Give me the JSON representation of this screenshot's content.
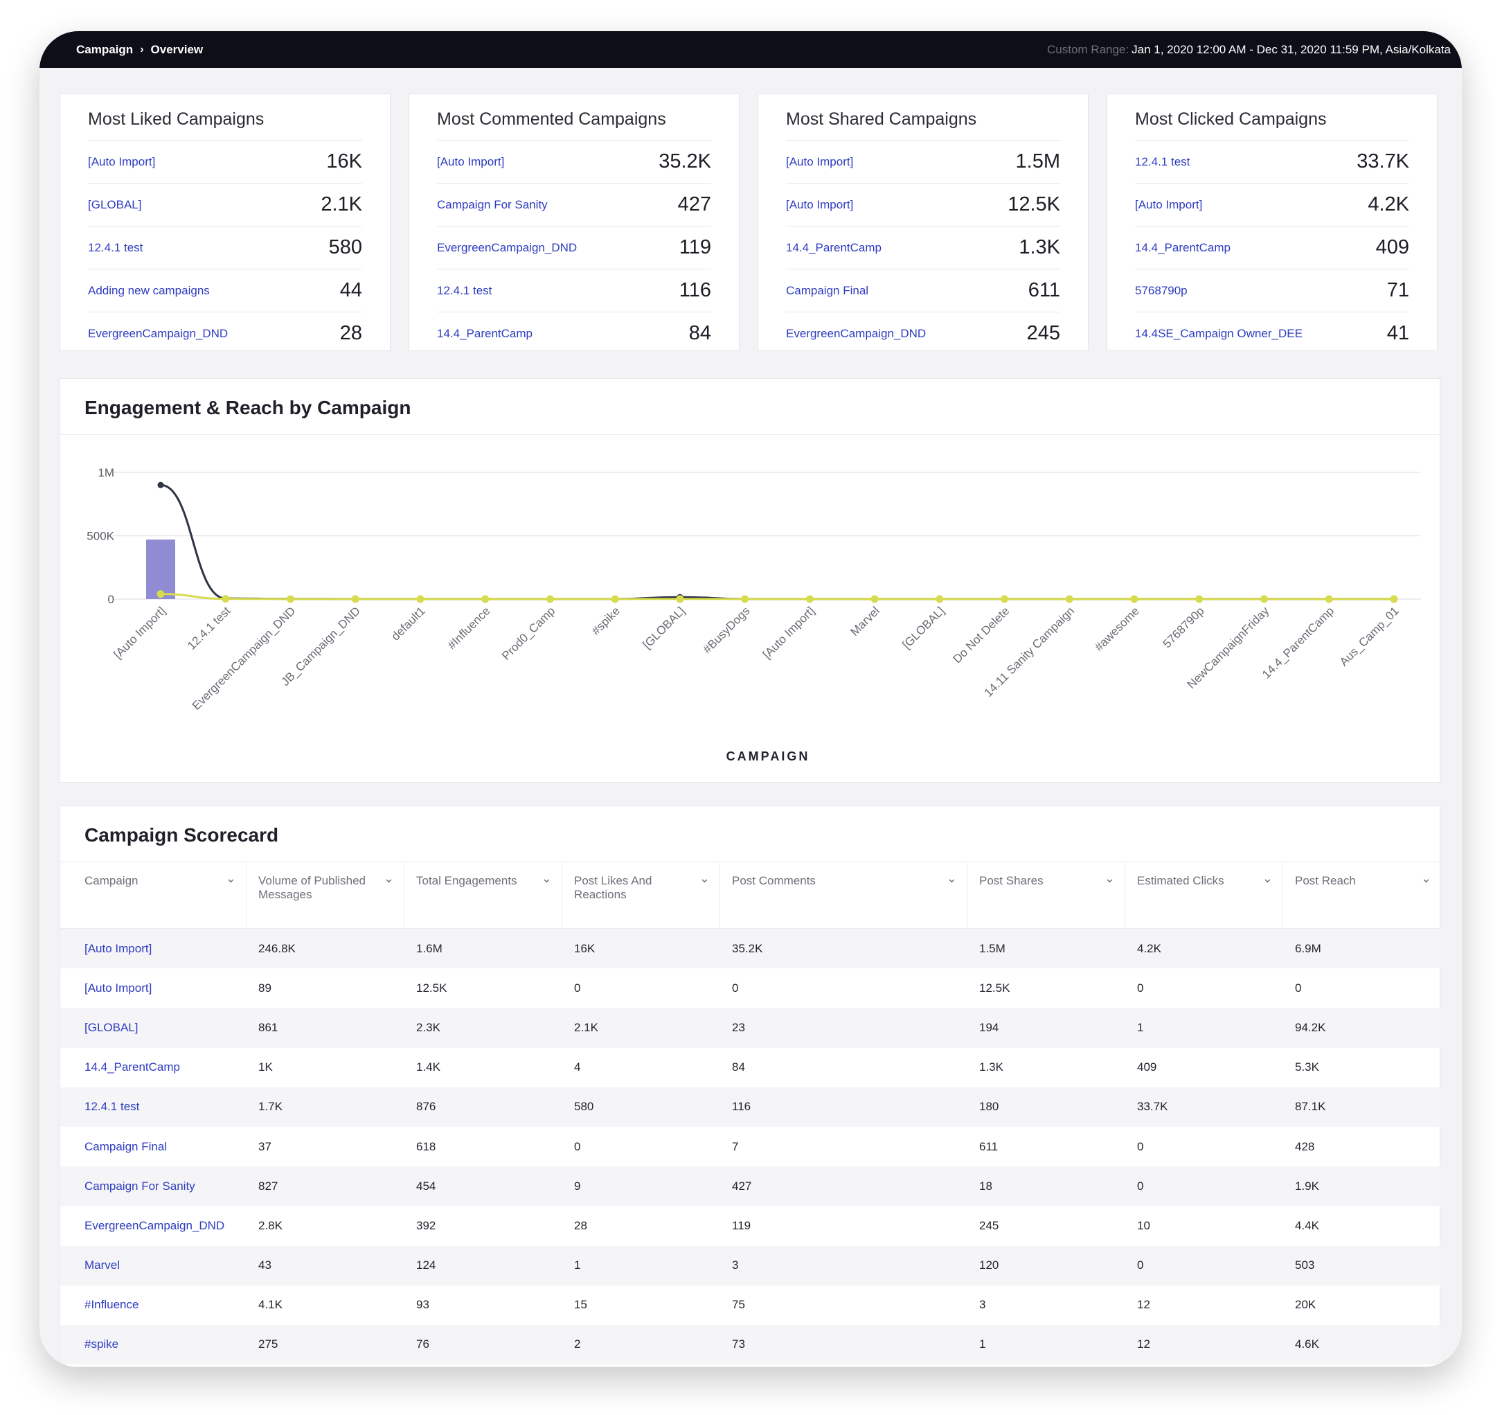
{
  "breadcrumb": {
    "root": "Campaign",
    "current": "Overview"
  },
  "date_range": {
    "label": "Custom Range:",
    "value": "Jan 1, 2020 12:00 AM - Dec 31, 2020 11:59 PM, Asia/Kolkata"
  },
  "cards": [
    {
      "title": "Most Liked Campaigns",
      "rows": [
        {
          "name": "[Auto Import]",
          "value": "16K"
        },
        {
          "name": "[GLOBAL]",
          "value": "2.1K"
        },
        {
          "name": "12.4.1 test",
          "value": "580"
        },
        {
          "name": "Adding new campaigns",
          "value": "44"
        },
        {
          "name": "EvergreenCampaign_DND",
          "value": "28"
        }
      ]
    },
    {
      "title": "Most Commented Campaigns",
      "rows": [
        {
          "name": "[Auto Import]",
          "value": "35.2K"
        },
        {
          "name": "Campaign For Sanity",
          "value": "427"
        },
        {
          "name": "EvergreenCampaign_DND",
          "value": "119"
        },
        {
          "name": "12.4.1 test",
          "value": "116"
        },
        {
          "name": "14.4_ParentCamp",
          "value": "84"
        }
      ]
    },
    {
      "title": "Most Shared Campaigns",
      "rows": [
        {
          "name": "[Auto Import]",
          "value": "1.5M"
        },
        {
          "name": "[Auto Import]",
          "value": "12.5K"
        },
        {
          "name": "14.4_ParentCamp",
          "value": "1.3K"
        },
        {
          "name": "Campaign Final",
          "value": "611"
        },
        {
          "name": "EvergreenCampaign_DND",
          "value": "245"
        }
      ]
    },
    {
      "title": "Most Clicked Campaigns",
      "rows": [
        {
          "name": "12.4.1 test",
          "value": "33.7K"
        },
        {
          "name": "[Auto Import]",
          "value": "4.2K"
        },
        {
          "name": "14.4_ParentCamp",
          "value": "409"
        },
        {
          "name": "5768790p",
          "value": "71"
        },
        {
          "name": "14.4SE_Campaign Owner_DEE",
          "value": "41"
        }
      ]
    }
  ],
  "engagement": {
    "title": "Engagement & Reach by Campaign"
  },
  "chart_data": {
    "type": "bar",
    "xlabel": "CAMPAIGN",
    "ylabel": "",
    "ylim": [
      0,
      1000000
    ],
    "yticks": [
      "0",
      "500K",
      "1M"
    ],
    "categories": [
      "[Auto Import]",
      "12.4.1 test",
      "EvergreenCampaign_DND",
      "JB_Campaign_DND",
      "default1",
      "#Influence",
      "Prod0_Camp",
      "#spike",
      "[GLOBAL]",
      "#BusyDogs",
      "[Auto Import]",
      "Marvel",
      "[GLOBAL]",
      "Do Not Delete",
      "14.11 Sanity Campaign",
      "#awesome",
      "5768790p",
      "NewCampaignFriday",
      "14.4_ParentCamp",
      "Aus_Camp_01"
    ],
    "series": [
      {
        "type": "bar",
        "color": "#8f8cd4",
        "values": [
          470000,
          3000,
          1000,
          500,
          500,
          500,
          500,
          500,
          500,
          500,
          500,
          500,
          500,
          500,
          500,
          500,
          500,
          500,
          500,
          500
        ]
      },
      {
        "type": "line",
        "color": "#2d3444",
        "values": [
          900000,
          5000,
          1500,
          800,
          800,
          700,
          700,
          1000,
          16000,
          900,
          700,
          700,
          600,
          600,
          600,
          600,
          600,
          600,
          600,
          600
        ]
      },
      {
        "type": "line",
        "color": "#d6dc4e",
        "values": [
          40000,
          2000,
          1000,
          400,
          400,
          400,
          400,
          400,
          400,
          400,
          400,
          400,
          400,
          400,
          400,
          400,
          400,
          400,
          400,
          400
        ]
      }
    ],
    "grid": true
  },
  "scorecard": {
    "title": "Campaign Scorecard",
    "headers": [
      "Campaign",
      "Volume of Published Messages",
      "Total Engagements",
      "Post Likes And Reactions",
      "Post Comments",
      "Post Shares",
      "Estimated Clicks",
      "Post Reach"
    ],
    "rows": [
      [
        "[Auto Import]",
        "246.8K",
        "1.6M",
        "16K",
        "35.2K",
        "1.5M",
        "4.2K",
        "6.9M"
      ],
      [
        "[Auto Import]",
        "89",
        "12.5K",
        "0",
        "0",
        "12.5K",
        "0",
        "0"
      ],
      [
        "[GLOBAL]",
        "861",
        "2.3K",
        "2.1K",
        "23",
        "194",
        "1",
        "94.2K"
      ],
      [
        "14.4_ParentCamp",
        "1K",
        "1.4K",
        "4",
        "84",
        "1.3K",
        "409",
        "5.3K"
      ],
      [
        "12.4.1 test",
        "1.7K",
        "876",
        "580",
        "116",
        "180",
        "33.7K",
        "87.1K"
      ],
      [
        "Campaign Final",
        "37",
        "618",
        "0",
        "7",
        "611",
        "0",
        "428"
      ],
      [
        "Campaign For Sanity",
        "827",
        "454",
        "9",
        "427",
        "18",
        "0",
        "1.9K"
      ],
      [
        "EvergreenCampaign_DND",
        "2.8K",
        "392",
        "28",
        "119",
        "245",
        "10",
        "4.4K"
      ],
      [
        "Marvel",
        "43",
        "124",
        "1",
        "3",
        "120",
        "0",
        "503"
      ],
      [
        "#Influence",
        "4.1K",
        "93",
        "15",
        "75",
        "3",
        "12",
        "20K"
      ],
      [
        "#spike",
        "275",
        "76",
        "2",
        "73",
        "1",
        "12",
        "4.6K"
      ]
    ]
  }
}
